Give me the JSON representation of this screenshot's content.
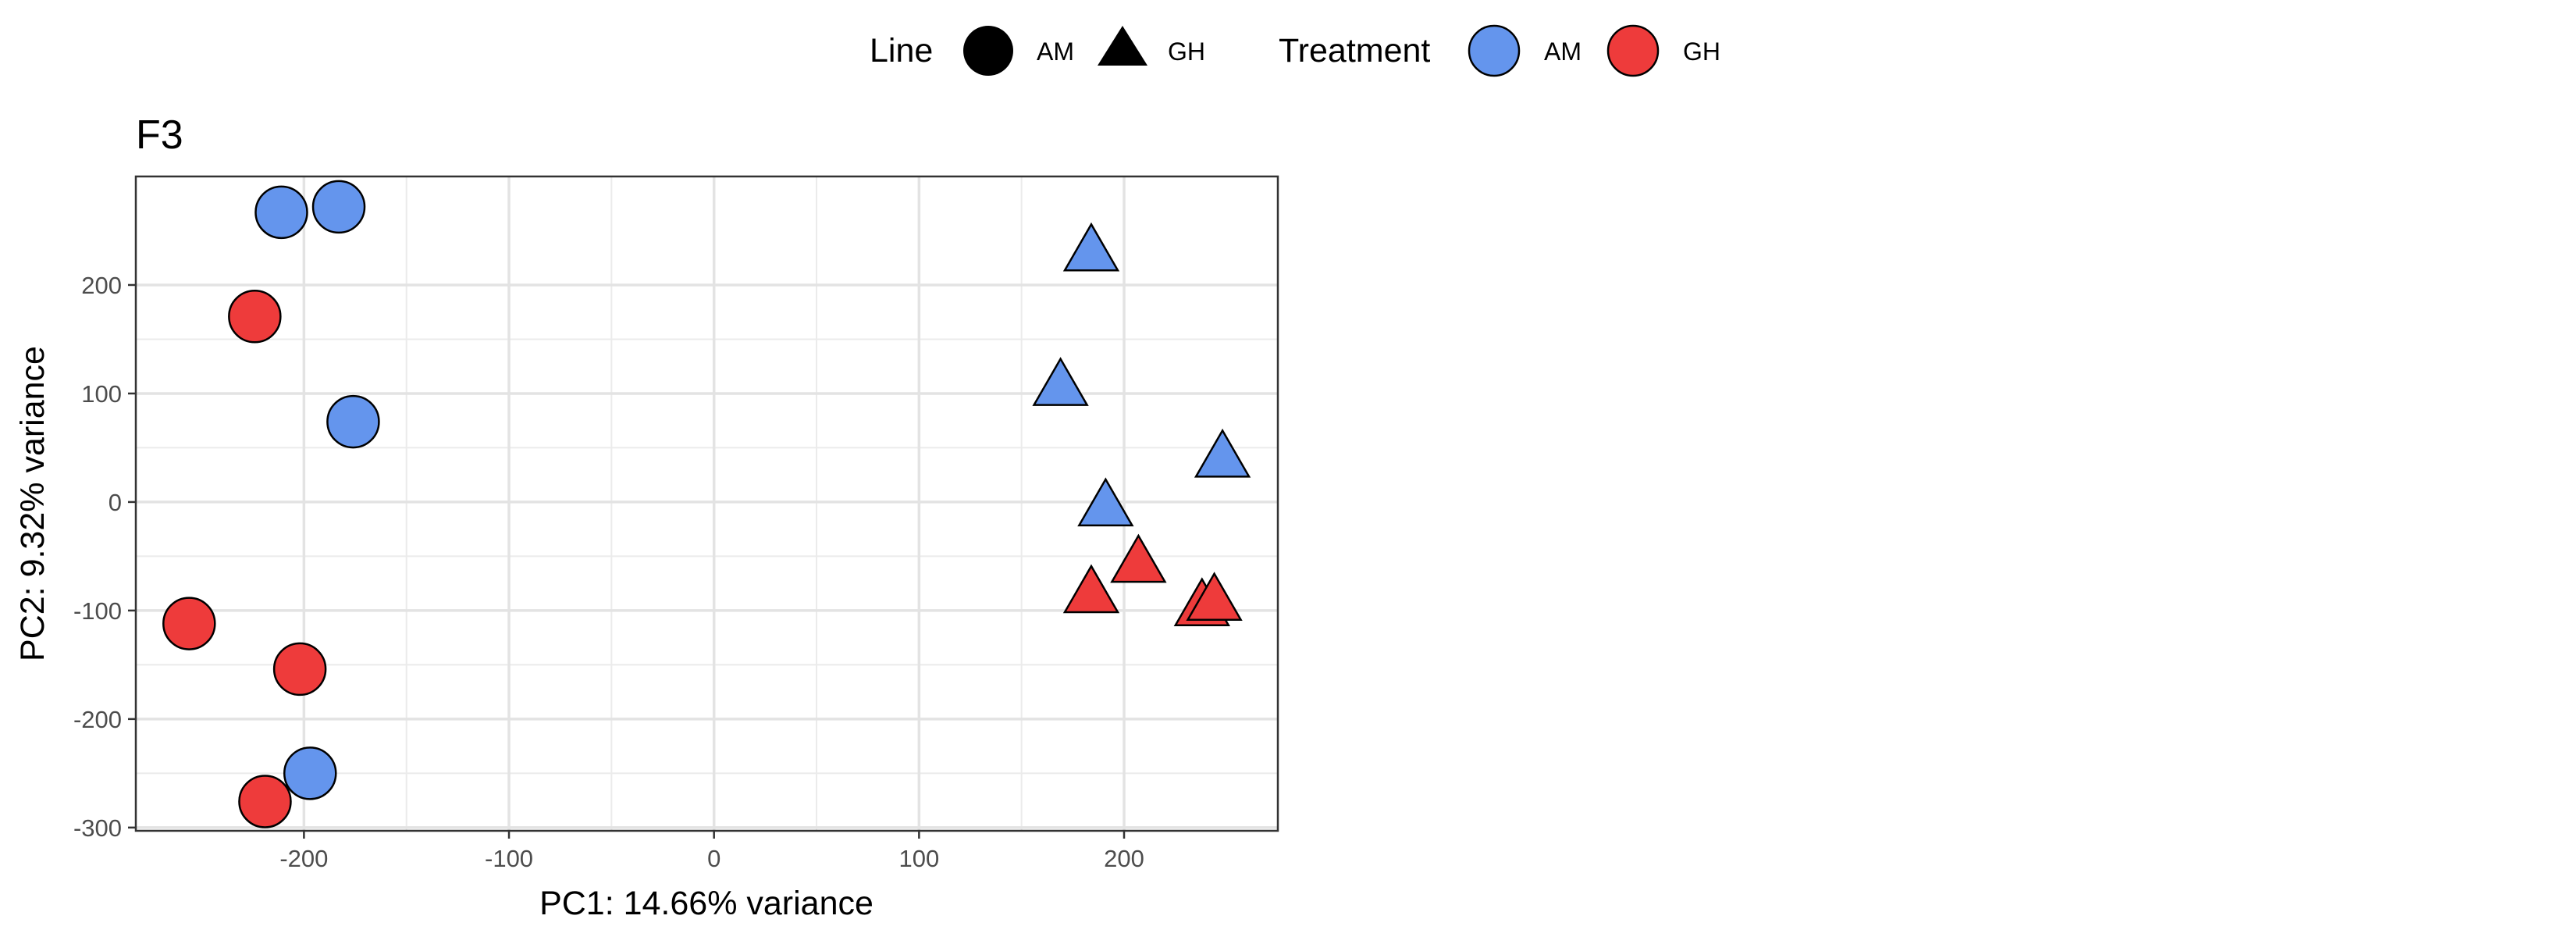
{
  "chart_data": {
    "type": "scatter",
    "title": "F3",
    "xlabel": "PC1: 14.66% variance",
    "ylabel": "PC2: 9.32% variance",
    "xlim": [
      -282,
      275
    ],
    "ylim": [
      -303,
      300
    ],
    "xticks": [
      -200,
      -100,
      0,
      100,
      200
    ],
    "yticks": [
      -300,
      -200,
      -100,
      0,
      100,
      200
    ],
    "grid": true,
    "legend": {
      "position": "top",
      "groups": [
        {
          "title": "Line",
          "entries": [
            {
              "label": "AM",
              "shape": "circle"
            },
            {
              "label": "GH",
              "shape": "triangle"
            }
          ]
        },
        {
          "title": "Treatment",
          "entries": [
            {
              "label": "AM",
              "color": "#6495ED"
            },
            {
              "label": "GH",
              "color": "#EE3B3B"
            }
          ]
        }
      ]
    },
    "colors": {
      "AM": "#6495ED",
      "GH": "#EE3B3B"
    },
    "points": [
      {
        "x": -211,
        "y": 267,
        "line": "AM",
        "treatment": "AM"
      },
      {
        "x": -183,
        "y": 272,
        "line": "AM",
        "treatment": "AM"
      },
      {
        "x": -224,
        "y": 171,
        "line": "AM",
        "treatment": "GH"
      },
      {
        "x": -176,
        "y": 74,
        "line": "AM",
        "treatment": "AM"
      },
      {
        "x": -256,
        "y": -112,
        "line": "AM",
        "treatment": "GH"
      },
      {
        "x": -202,
        "y": -154,
        "line": "AM",
        "treatment": "GH"
      },
      {
        "x": -197,
        "y": -250,
        "line": "AM",
        "treatment": "AM"
      },
      {
        "x": -219,
        "y": -276,
        "line": "AM",
        "treatment": "GH"
      },
      {
        "x": 184,
        "y": 230,
        "line": "GH",
        "treatment": "AM"
      },
      {
        "x": 169,
        "y": 106,
        "line": "GH",
        "treatment": "AM"
      },
      {
        "x": 248,
        "y": 40,
        "line": "GH",
        "treatment": "AM"
      },
      {
        "x": 191,
        "y": -5,
        "line": "GH",
        "treatment": "AM"
      },
      {
        "x": 207,
        "y": -57,
        "line": "GH",
        "treatment": "GH"
      },
      {
        "x": 184,
        "y": -85,
        "line": "GH",
        "treatment": "GH"
      },
      {
        "x": 238,
        "y": -97,
        "line": "GH",
        "treatment": "GH"
      },
      {
        "x": 244,
        "y": -92,
        "line": "GH",
        "treatment": "GH"
      }
    ]
  }
}
